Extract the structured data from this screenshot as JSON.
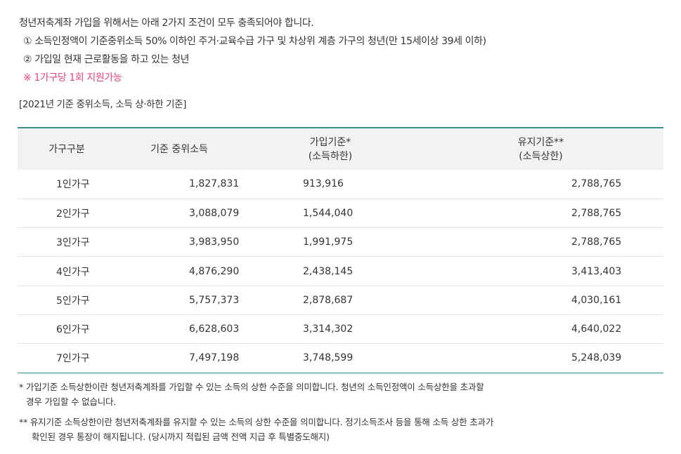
{
  "intro": {
    "heading": "청년저축계좌 가입을 위해서는 아래 2가지 조건이 모두 충족되어야 합니다.",
    "condition_1": "① 소득인정액이 기준중위소득 50% 이하인 주거·교육수급 가구 및 차상위 계층 가구의 청년(만 15세이상 39세 이하)",
    "condition_2": "② 가입일 현재 근로활동을 하고 있는 청년",
    "note": "※ 1가구당 1회 지원가능"
  },
  "caption": "[2021년 기준 중위소득, 소득 상·하한 기준]",
  "table": {
    "headers": {
      "household": "가구구분",
      "median": "기준 중위소득",
      "join_line1": "가입기준*",
      "join_line2": "(소득하한)",
      "keep_line1": "유지기준**",
      "keep_line2": "(소득상한)"
    },
    "rows": [
      {
        "household": "1인가구",
        "median": "1,827,831",
        "join": "913,916",
        "keep": "2,788,765"
      },
      {
        "household": "2인가구",
        "median": "3,088,079",
        "join": "1,544,040",
        "keep": "2,788,765"
      },
      {
        "household": "3인가구",
        "median": "3,983,950",
        "join": "1,991,975",
        "keep": "2,788,765"
      },
      {
        "household": "4인가구",
        "median": "4,876,290",
        "join": "2,438,145",
        "keep": "3,413,403"
      },
      {
        "household": "5인가구",
        "median": "5,757,373",
        "join": "2,878,687",
        "keep": "4,030,161"
      },
      {
        "household": "6인가구",
        "median": "6,628,603",
        "join": "3,314,302",
        "keep": "4,640,022"
      },
      {
        "household": "7인가구",
        "median": "7,497,198",
        "join": "3,748,599",
        "keep": "5,248,039"
      }
    ]
  },
  "footnotes": {
    "fn1_line1": "* 가입기준 소득상한이란 청년저축계좌를 가입할 수 있는 소득의 상한 수준을 의미합니다. 청년의 소득인정액이 소득상한을 초과할",
    "fn1_line2": "경우 가입할 수 없습니다.",
    "fn2_line1": "** 유지기준 소득상한이란 청년저축계좌를 유지할 수 있는 소득의 상한 수준을 의미합니다. 정기소득조사 등을 통해 소득 상한 초과가",
    "fn2_line2": "확인된 경우 통장이 해지됩니다. (당시까지 적립된 금액 전액 지급 후 특별중도해지)"
  }
}
